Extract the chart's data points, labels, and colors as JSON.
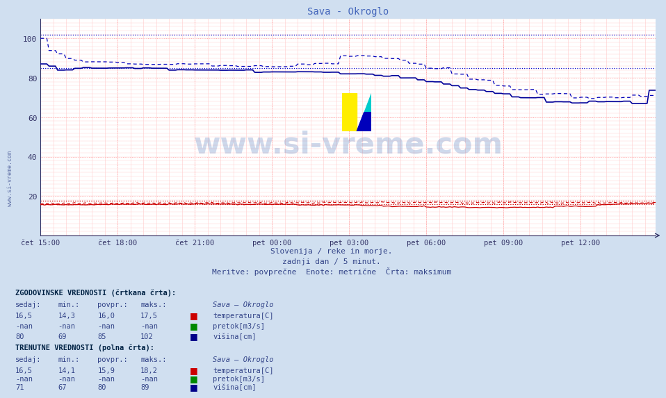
{
  "title": "Sava - Okroglo",
  "title_color": "#4466bb",
  "bg_color": "#d0dff0",
  "plot_bg_color": "#ffffff",
  "xlabel_ticks": [
    "čet 15:00",
    "čet 18:00",
    "čet 21:00",
    "pet 00:00",
    "pet 03:00",
    "pet 06:00",
    "pet 09:00",
    "pet 12:00"
  ],
  "ylim": [
    0,
    110
  ],
  "yticks": [
    20,
    40,
    60,
    80,
    100
  ],
  "subtitle1": "Slovenija / reke in morje.",
  "subtitle2": "zadnji dan / 5 minut.",
  "subtitle3": "Meritve: povprečne  Enote: metrične  Črta: maksimum",
  "watermark_text": "www.si-vreme.com",
  "watermark_color": "#2255aa",
  "n_points": 288,
  "hist_visina_max": 102,
  "hist_visina_avg": 85,
  "curr_visina_now": 71,
  "hist_temp_max": 17.5,
  "hist_temp_avg": 16.0,
  "curr_temp_now": 16.5,
  "table_hist_header": "ZGODOVINSKE VREDNOSTI (črtkana črta):",
  "table_curr_header": "TRENUTNE VREDNOSTI (polna črta):",
  "table_col_headers": [
    "sedaj:",
    "min.:",
    "povpr.:",
    "maks.:"
  ],
  "table_station": "Sava – Okroglo",
  "hist_rows": [
    {
      "vals": [
        "16,5",
        "14,3",
        "16,0",
        "17,5"
      ],
      "color": "#cc0000",
      "label": "temperatura[C]"
    },
    {
      "vals": [
        "-nan",
        "-nan",
        "-nan",
        "-nan"
      ],
      "color": "#008800",
      "label": "pretok[m3/s]"
    },
    {
      "vals": [
        "80",
        "69",
        "85",
        "102"
      ],
      "color": "#000088",
      "label": "višina[cm]"
    }
  ],
  "curr_rows": [
    {
      "vals": [
        "16,5",
        "14,1",
        "15,9",
        "18,2"
      ],
      "color": "#cc0000",
      "label": "temperatura[C]"
    },
    {
      "vals": [
        "-nan",
        "-nan",
        "-nan",
        "-nan"
      ],
      "color": "#008800",
      "label": "pretok[m3/s]"
    },
    {
      "vals": [
        "71",
        "67",
        "80",
        "89"
      ],
      "color": "#000088",
      "label": "višina[cm]"
    }
  ],
  "left_watermark": "www.si-vreme.com"
}
